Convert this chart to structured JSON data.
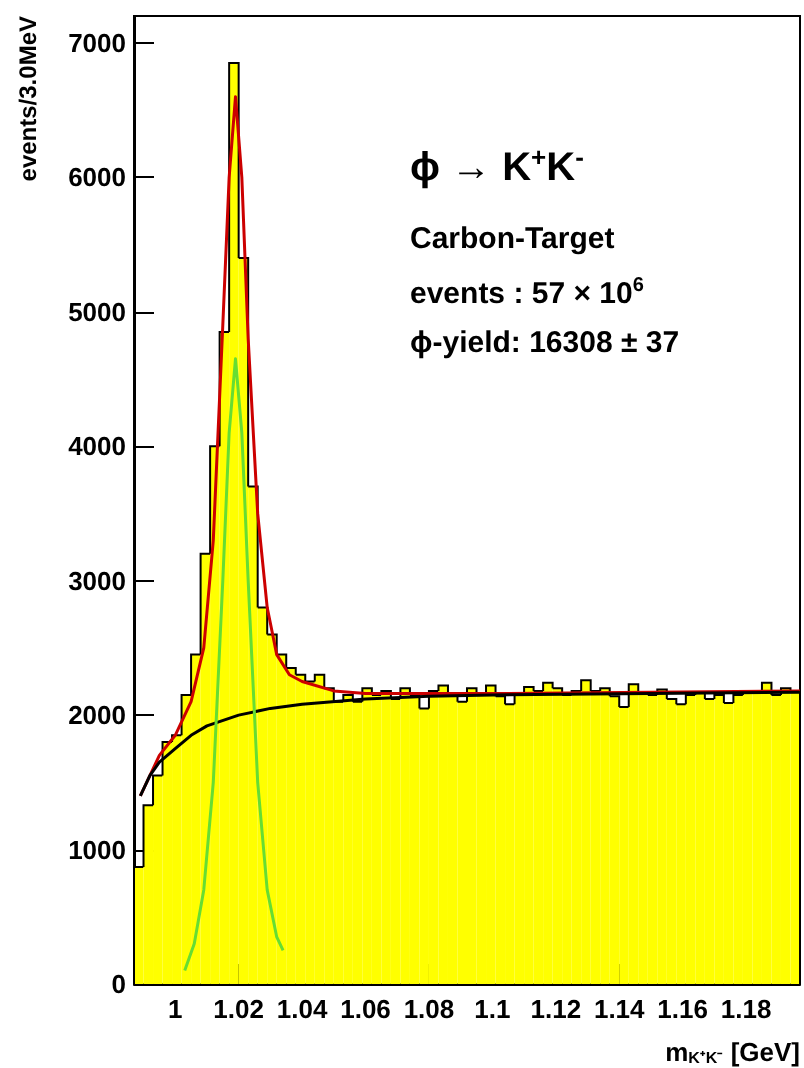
{
  "chart_data": {
    "type": "histogram",
    "xlabel": "m$_{K⁺K⁻}$ [GeV]",
    "ylabel": "events/3.0MeV",
    "annotations": [
      "ϕ → K$^{+}$K$^{-}$",
      "Carbon-Target",
      "events : 57 × 10$^{6}$",
      "ϕ-yield: 16308 ± 37"
    ],
    "xlim": [
      0.987,
      1.197
    ],
    "ylim": [
      0,
      7200
    ],
    "xticks": [
      1,
      1.02,
      1.04,
      1.06,
      1.08,
      1.1,
      1.12,
      1.14,
      1.16,
      1.18
    ],
    "yticks": [
      0,
      1000,
      2000,
      3000,
      4000,
      5000,
      6000,
      7000
    ],
    "grid": false,
    "series": [
      {
        "color": "#ffff00",
        "bins": [
          0.987,
          0.99,
          0.993,
          0.996,
          0.999,
          1.002,
          1.005,
          1.008,
          1.011,
          1.014,
          1.017,
          1.02,
          1.023,
          1.026,
          1.029,
          1.032,
          1.035,
          1.038,
          1.041,
          1.044,
          1.047,
          1.05,
          1.053,
          1.056,
          1.059,
          1.062,
          1.065,
          1.068,
          1.071,
          1.074,
          1.077,
          1.08,
          1.083,
          1.086,
          1.089,
          1.092,
          1.095,
          1.098,
          1.101,
          1.104,
          1.107,
          1.11,
          1.113,
          1.116,
          1.119,
          1.122,
          1.125,
          1.128,
          1.131,
          1.134,
          1.137,
          1.14,
          1.143,
          1.146,
          1.149,
          1.152,
          1.155,
          1.158,
          1.161,
          1.164,
          1.167,
          1.17,
          1.173,
          1.176,
          1.179,
          1.182,
          1.185,
          1.188,
          1.191,
          1.194,
          1.197
        ],
        "values": [
          870,
          1330,
          1550,
          1800,
          1850,
          2150,
          2450,
          3200,
          4000,
          4850,
          6850,
          5400,
          3700,
          2800,
          2600,
          2450,
          2350,
          2300,
          2250,
          2300,
          2200,
          2100,
          2150,
          2100,
          2200,
          2150,
          2180,
          2120,
          2200,
          2150,
          2050,
          2180,
          2220,
          2150,
          2100,
          2200,
          2160,
          2220,
          2140,
          2080,
          2160,
          2210,
          2180,
          2240,
          2200,
          2150,
          2180,
          2260,
          2180,
          2200,
          2140,
          2060,
          2230,
          2160,
          2150,
          2190,
          2120,
          2080,
          2150,
          2170,
          2120,
          2150,
          2090,
          2150,
          2180,
          2170,
          2240,
          2150,
          2200,
          2180
        ]
      },
      {
        "type": "line",
        "color": "#cc0000",
        "x": [
          0.989,
          0.995,
          1.0,
          1.005,
          1.009,
          1.012,
          1.015,
          1.017,
          1.019,
          1.021,
          1.023,
          1.026,
          1.029,
          1.032,
          1.036,
          1.04,
          1.05,
          1.06,
          1.1,
          1.15,
          1.197
        ],
        "values": [
          1400,
          1700,
          1850,
          2100,
          2500,
          3300,
          4900,
          6000,
          6600,
          6000,
          4800,
          3500,
          2800,
          2450,
          2300,
          2250,
          2180,
          2160,
          2160,
          2170,
          2180
        ]
      },
      {
        "type": "line",
        "color": "#000000",
        "x": [
          0.989,
          0.992,
          0.995,
          1.0,
          1.005,
          1.01,
          1.02,
          1.03,
          1.04,
          1.06,
          1.08,
          1.1,
          1.15,
          1.197
        ],
        "values": [
          1400,
          1550,
          1650,
          1750,
          1850,
          1920,
          2000,
          2050,
          2080,
          2120,
          2140,
          2150,
          2160,
          2170
        ]
      },
      {
        "type": "line",
        "color": "#66dd33",
        "x": [
          1.003,
          1.006,
          1.009,
          1.012,
          1.015,
          1.017,
          1.019,
          1.021,
          1.023,
          1.026,
          1.029,
          1.032,
          1.034
        ],
        "values": [
          100,
          300,
          700,
          1500,
          3000,
          4100,
          4650,
          4100,
          3000,
          1500,
          700,
          350,
          250
        ]
      }
    ]
  }
}
